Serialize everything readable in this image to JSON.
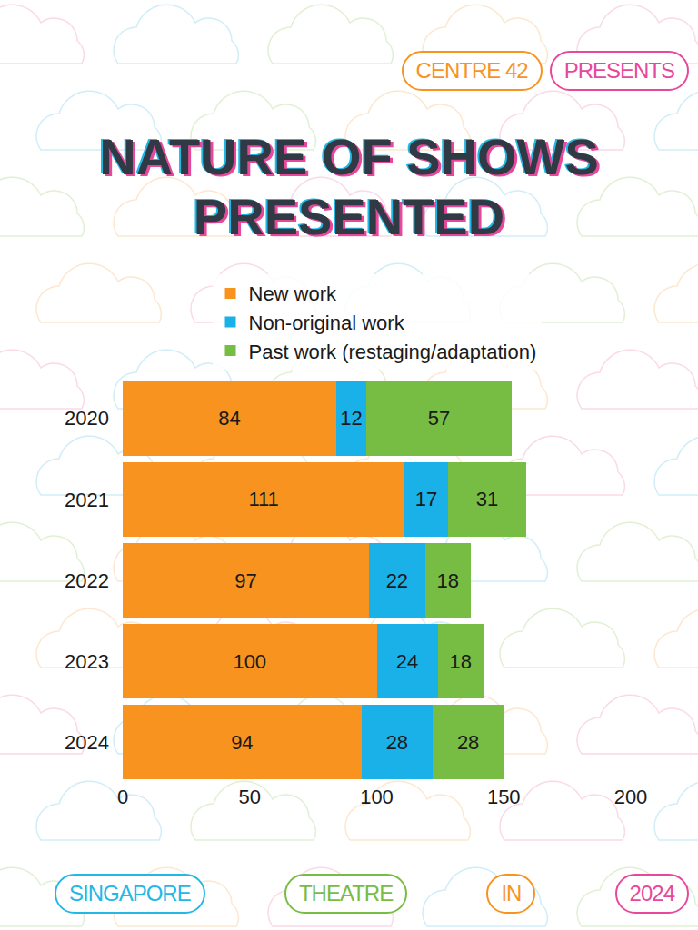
{
  "header": [
    "CENTRE 42",
    "PRESENTS"
  ],
  "chart_data": {
    "type": "bar",
    "orientation": "horizontal",
    "stacked": true,
    "title": "NATURE OF SHOWS PRESENTED",
    "categories": [
      "2020",
      "2021",
      "2022",
      "2023",
      "2024"
    ],
    "series": [
      {
        "name": "New work",
        "color": "#f7931e",
        "values": [
          84,
          111,
          97,
          100,
          94
        ]
      },
      {
        "name": "Non-original work",
        "color": "#1ab0e8",
        "values": [
          12,
          17,
          22,
          24,
          28
        ]
      },
      {
        "name": "Past work (restaging/adaptation)",
        "color": "#77bc43",
        "values": [
          57,
          31,
          18,
          18,
          28
        ]
      }
    ],
    "xlim": [
      0,
      200
    ],
    "xticks": [
      0,
      50,
      100,
      150,
      200
    ],
    "grid": false,
    "data_labels": true,
    "legend": "top"
  },
  "footer": [
    "SINGAPORE",
    "THEATRE",
    "IN",
    "2024"
  ]
}
